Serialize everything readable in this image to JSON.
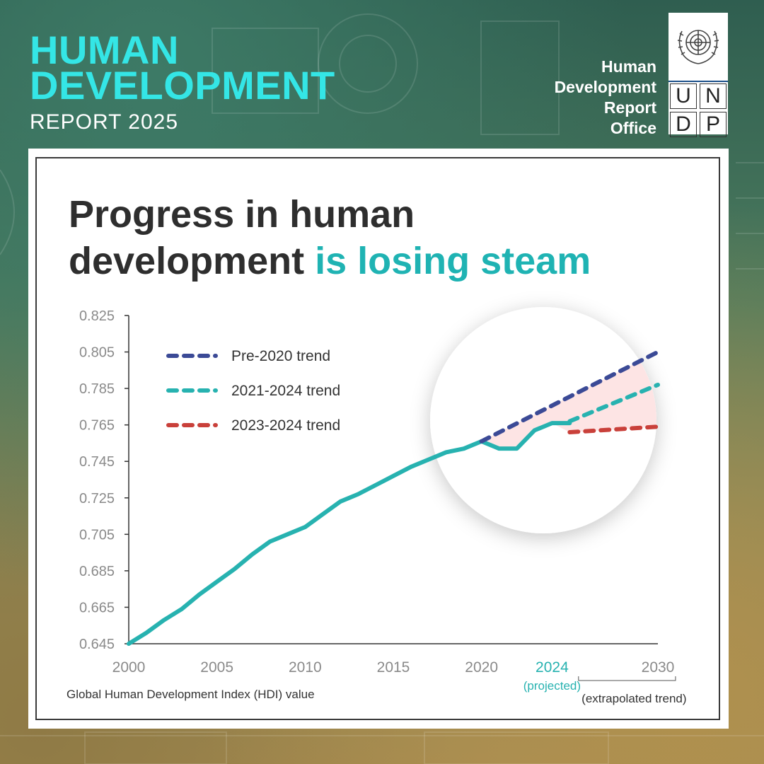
{
  "header": {
    "title_line1": "HUMAN",
    "title_line2": "DEVELOPMENT",
    "subtitle": "REPORT 2025"
  },
  "office": {
    "line1": "Human",
    "line2": "Development",
    "line3": "Report",
    "line4": "Office"
  },
  "undp_logo": {
    "letters": [
      "U",
      "N",
      "D",
      "P"
    ]
  },
  "headline": {
    "part1": "Progress in human",
    "part2": "development",
    "accent": "is losing steam"
  },
  "colors": {
    "teal_title": "#34e6e6",
    "teal_line": "#27b2b0",
    "pre2020": "#3b4a96",
    "trend2324": "#c9403a",
    "gap_fill": "#fde4e4"
  },
  "chart_data": {
    "type": "line",
    "ylabel": "Global Human Development Index (HDI) value",
    "ylim": [
      0.645,
      0.825
    ],
    "yticks": [
      "0.825",
      "0.805",
      "0.785",
      "0.765",
      "0.745",
      "0.725",
      "0.705",
      "0.685",
      "0.665",
      "0.645"
    ],
    "xlim": [
      2000,
      2030
    ],
    "xticks": [
      "2000",
      "2005",
      "2010",
      "2015",
      "2020",
      "2024",
      "2030"
    ],
    "x_annotations": {
      "projected": "(projected)",
      "extrapolated": "(extrapolated trend)"
    },
    "series": [
      {
        "name": "Global HDI",
        "style": "solid",
        "x": [
          2000,
          2001,
          2002,
          2003,
          2004,
          2005,
          2006,
          2007,
          2008,
          2009,
          2010,
          2011,
          2012,
          2013,
          2014,
          2015,
          2016,
          2017,
          2018,
          2019,
          2020,
          2021,
          2022,
          2023,
          2024,
          2025
        ],
        "y": [
          0.645,
          0.651,
          0.658,
          0.664,
          0.672,
          0.679,
          0.686,
          0.694,
          0.701,
          0.705,
          0.709,
          0.716,
          0.723,
          0.727,
          0.732,
          0.737,
          0.742,
          0.746,
          0.75,
          0.752,
          0.756,
          0.752,
          0.752,
          0.762,
          0.766,
          0.766
        ]
      },
      {
        "name": "Pre-2020 trend",
        "style": "dashed",
        "x": [
          2020,
          2030
        ],
        "y": [
          0.756,
          0.805
        ]
      },
      {
        "name": "2021-2024 trend",
        "style": "dashed",
        "x": [
          2025,
          2030
        ],
        "y": [
          0.767,
          0.787
        ]
      },
      {
        "name": "2023-2024 trend",
        "style": "dashed",
        "x": [
          2025,
          2030
        ],
        "y": [
          0.761,
          0.764
        ]
      }
    ],
    "legend": [
      "Pre-2020 trend",
      "2021-2024 trend",
      "2023-2024 trend"
    ]
  }
}
